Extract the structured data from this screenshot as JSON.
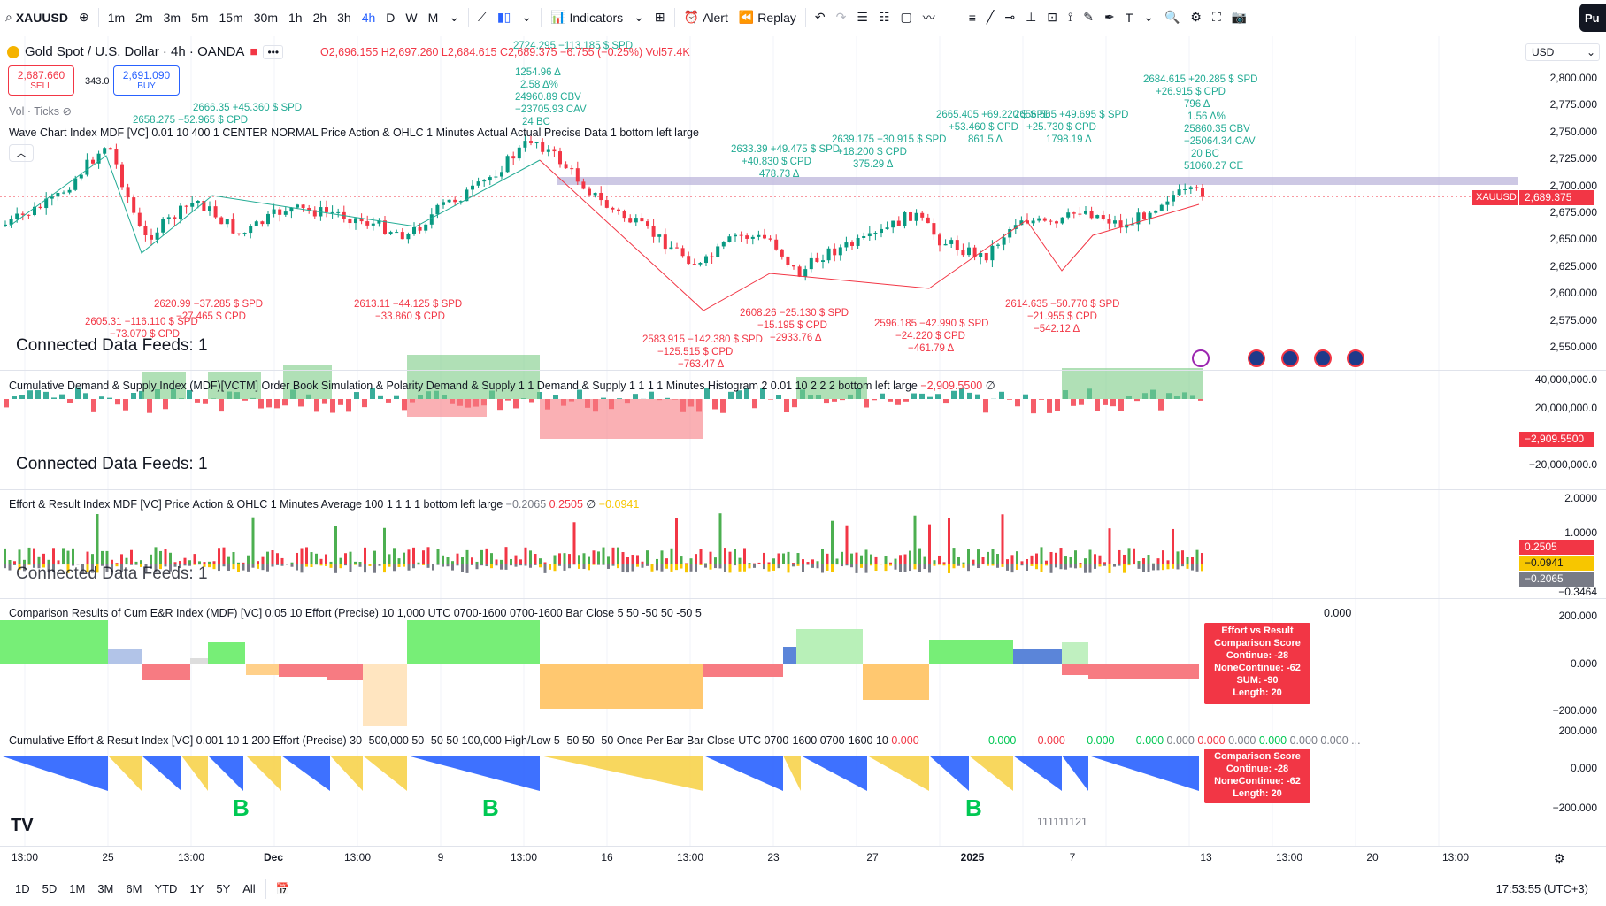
{
  "toolbar": {
    "symbol": "XAUUSD",
    "intervals": [
      "1m",
      "2m",
      "3m",
      "5m",
      "15m",
      "30m",
      "1h",
      "2h",
      "3h",
      "4h",
      "D",
      "W",
      "M"
    ],
    "active_interval": "4h",
    "indicators_label": "Indicators",
    "alert_label": "Alert",
    "replay_label": "Replay",
    "publish_label": "Pu"
  },
  "header": {
    "title": "Gold Spot / U.S. Dollar · 4h · OANDA",
    "ohlc": "O2,696.155 H2,697.260 L2,684.615 C2,689.375 −6.755 (−0.25%)",
    "volume": "Vol57.4K",
    "sell_price": "2,687.660",
    "sell_label": "SELL",
    "spread": "343.0",
    "buy_price": "2,691.090",
    "buy_label": "BUY",
    "vol_ticks": "Vol · Ticks",
    "currency": "USD"
  },
  "panes": {
    "wave_legend": "Wave Chart Index MDF [VC] 0.01 10 400 1 CENTER NORMAL Price Action & OHLC 1 Minutes Actual Actual Precise Data 1 bottom left large",
    "connected_feeds": "Connected Data Feeds: 1",
    "cds_legend": "Cumulative Demand & Supply Index (MDF)[VCTM] Order Book Simulation & Polarity Demand & Supply 1 1 Demand & Supply 1 1 1 1 Minutes Histogram 2 0.01 10 2 2 2 bottom left large",
    "cds_value": "−2,909.5500",
    "cds_extra": "∅",
    "er_legend": "Effort & Result Index MDF [VC] Price Action & OHLC 1 Minutes Average 100 1 1 1 1 bottom left large",
    "er_values": [
      "−0.2065",
      "0.2505",
      "∅",
      "−0.0941"
    ],
    "cmp_legend": "Comparison Results of Cum E&R Index (MDF) [VC] 0.05 10 Effort (Precise) 10 1,000 UTC 0700-1600 0700-1600 Bar Close 5 50 -50 50 -50 5",
    "cmp_value": "0.000",
    "cum_legend": "Cumulative Effort & Result Index [VC] 0.001 10 1 200 Effort (Precise) 30 -500,000 50 -50 50 100,000 High/Low 5 -50 50 -50 Once Per Bar Bar Close UTC 0700-1600 0700-1600 10",
    "cum_values": [
      "0.000",
      "0.000",
      "0.000",
      "0.000",
      "0.000",
      "0.000",
      "0.000",
      "0.000",
      "0.000",
      "0.000",
      "0.000 ..."
    ],
    "b_label": "B",
    "counter_text": "111111121"
  },
  "score_box_1": [
    "Effort vs Result",
    "Comparison Score",
    "Continue: -28",
    "NoneContinue: -62",
    "SUM: -90",
    "Length: 20"
  ],
  "score_box_2": [
    "Comparison Score",
    "Continue: -28",
    "NoneContinue: -62",
    "Length: 20"
  ],
  "price_axis": {
    "main_ticks": [
      "2,800.000",
      "2,775.000",
      "2,750.000",
      "2,725.000",
      "2,700.000",
      "2,675.000",
      "2,650.000",
      "2,625.000",
      "2,600.000",
      "2,575.000",
      "2,550.000"
    ],
    "last_price": "2,689.375",
    "last_symbol": "XAUUSD",
    "cds_ticks": [
      "40,000,000.0",
      "20,000,000.0",
      "−20,000,000.0"
    ],
    "cds_tag": "−2,909.5500",
    "er_ticks": [
      "2.0000",
      "1.0000",
      "−0.3464"
    ],
    "er_tags": [
      "0.2505",
      "−0.0941",
      "−0.2065"
    ],
    "cmp_ticks": [
      "200.000",
      "0.000",
      "−200.000"
    ],
    "cum_ticks": [
      "200.000",
      "0.000",
      "−200.000"
    ]
  },
  "time_axis": [
    "13:00",
    "25",
    "13:00",
    "Dec",
    "13:00",
    "9",
    "13:00",
    "16",
    "13:00",
    "23",
    "27",
    "2025",
    "7",
    "13",
    "13:00",
    "20",
    "13:00"
  ],
  "bottom": {
    "ranges": [
      "1D",
      "5D",
      "1M",
      "3M",
      "6M",
      "YTD",
      "1Y",
      "5Y",
      "All"
    ],
    "clock": "17:53:55 (UTC+3)"
  },
  "annotations_green": [
    "2724.295 −113.185 $ SPD",
    "1254.96 Δ",
    "2.58 Δ%",
    "24960.89 CBV",
    "−23705.93 CAV",
    "24 BC",
    "2666.35 +45.360 $ SPD",
    "2658.275 +52.965 $ CPD",
    "2633.39 +49.475 $ SPD",
    "+40.830 $ CPD",
    "478.73 Δ",
    "2639.175 +30.915 $ SPD",
    "+18.200 $ CPD",
    "375.29 Δ",
    "2665.405 +69.220 $ SPD",
    "+53.460 $ CPD",
    "861.5 Δ",
    "2656.565 +49.695 $ SPD",
    "+25.730 $ CPD",
    "1798.19 Δ",
    "2684.615 +20.285 $ SPD",
    "+26.915 $ CPD",
    "796 Δ",
    "1.56 Δ%",
    "25860.35 CBV",
    "−25064.34 CAV",
    "20 BC",
    "51060.27 CE"
  ],
  "annotations_red": [
    "2605.31 −116.110 $ SPD",
    "−73.070 $ CPD",
    "2620.99 −37.285 $ SPD",
    "−27.465 $ CPD",
    "2613.11 −44.125 $ SPD",
    "−33.860 $ CPD",
    "2583.915 −142.380 $ SPD",
    "−125.515 $ CPD",
    "−763.47 Δ",
    "2608.26 −25.130 $ SPD",
    "−15.195 $ CPD",
    "−2933.76 Δ",
    "2596.185 −42.990 $ SPD",
    "−24.220 $ CPD",
    "−461.79 Δ",
    "2614.635 −50.770 $ SPD",
    "−21.955 $ CPD",
    "−542.12 Δ"
  ]
}
